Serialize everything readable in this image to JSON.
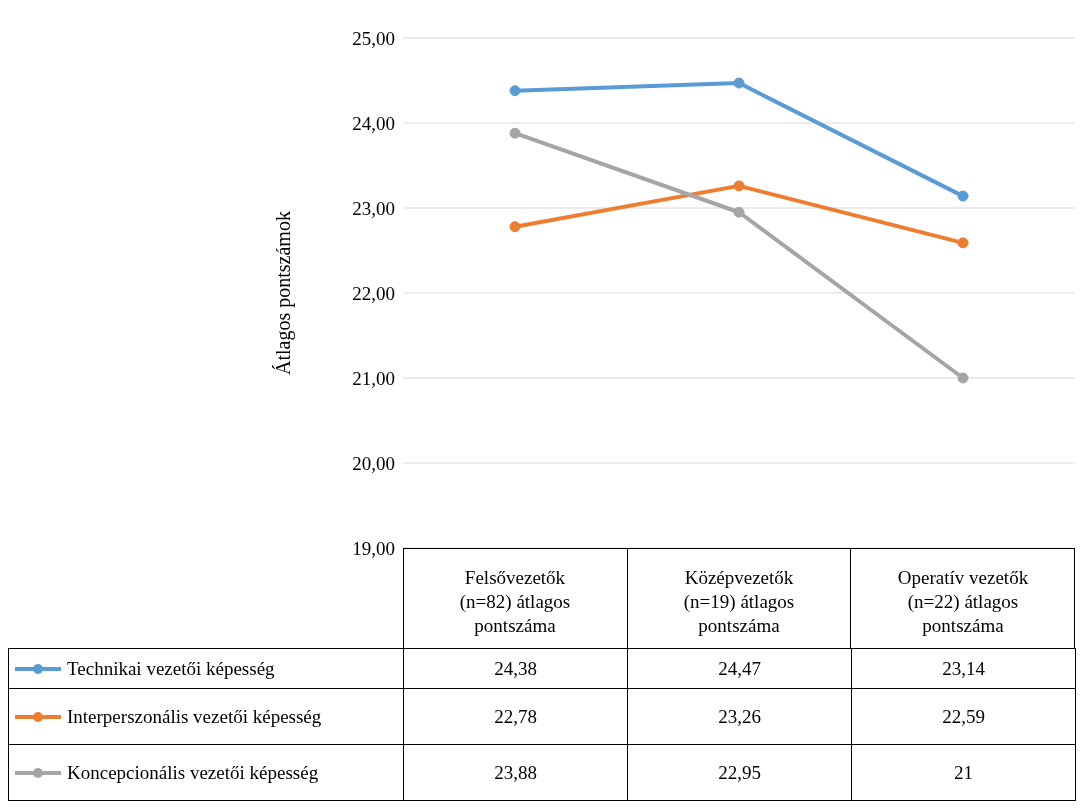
{
  "chart_data": {
    "type": "line",
    "ylabel": "Átlagos pontszámok",
    "categories": [
      "Felsővezetők (n=82) átlagos pontszáma",
      "Középvezetők (n=19) átlagos pontszáma",
      "Operatív vezetők (n=22) átlagos pontszáma"
    ],
    "series": [
      {
        "name": "Technikai vezetői képesség",
        "color": "#5b9bd5",
        "values": [
          24.38,
          24.47,
          23.14
        ],
        "value_labels": [
          "24,38",
          "24,47",
          "23,14"
        ]
      },
      {
        "name": "Interperszonális vezetői képesség",
        "color": "#ed7d31",
        "values": [
          22.78,
          23.26,
          22.59
        ],
        "value_labels": [
          "22,78",
          "23,26",
          "22,59"
        ]
      },
      {
        "name": "Koncepcionális vezetői képesség",
        "color": "#a5a5a5",
        "values": [
          23.88,
          22.95,
          21
        ],
        "value_labels": [
          "23,88",
          "22,95",
          "21"
        ]
      }
    ],
    "ylim": [
      19,
      25
    ],
    "yticks": [
      {
        "value": 19,
        "label": "19,00"
      },
      {
        "value": 20,
        "label": "20,00"
      },
      {
        "value": 21,
        "label": "21,00"
      },
      {
        "value": 22,
        "label": "22,00"
      },
      {
        "value": 23,
        "label": "23,00"
      },
      {
        "value": 24,
        "label": "24,00"
      },
      {
        "value": 25,
        "label": "25,00"
      }
    ],
    "grid": "y",
    "legend": "bottom",
    "marker": "circle",
    "line_style": "solid"
  }
}
